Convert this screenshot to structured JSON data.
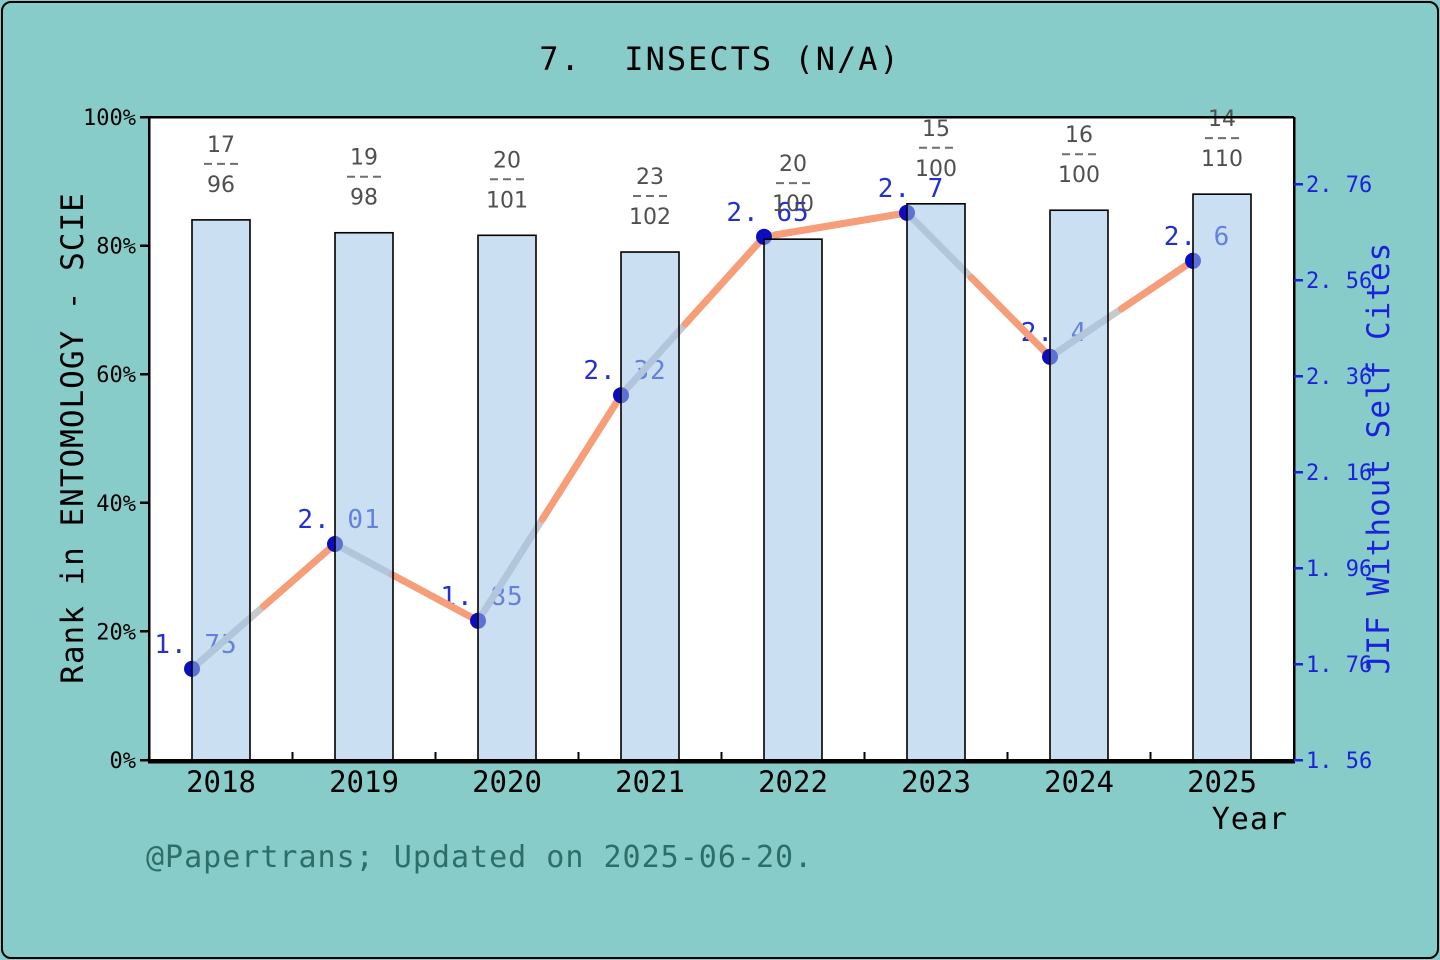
{
  "title": "7.  INSECTS (N/A)",
  "footer_credit": "@Papertrans; Updated on 2025-06-20.",
  "x_axis": {
    "label": "Year",
    "categories": [
      "2018",
      "2019",
      "2020",
      "2021",
      "2022",
      "2023",
      "2024",
      "2025"
    ]
  },
  "left_axis": {
    "label": "Rank in ENTOMOLOGY - SCIE",
    "tick_labels": [
      "0%",
      "20%",
      "40%",
      "60%",
      "80%",
      "100%"
    ],
    "tick_values": [
      0,
      20,
      40,
      60,
      80,
      100
    ]
  },
  "right_axis": {
    "label": "JIF Without Self Cites",
    "tick_values": [
      1.56,
      1.76,
      1.96,
      2.16,
      2.36,
      2.56,
      2.76
    ]
  },
  "chart_data": {
    "type": "bar+line",
    "title": "7. INSECTS (N/A)",
    "xlabel": "Year",
    "categories": [
      "2018",
      "2019",
      "2020",
      "2021",
      "2022",
      "2023",
      "2024",
      "2025"
    ],
    "series": [
      {
        "name": "Rank in ENTOMOLOGY - SCIE (percentile bars)",
        "type": "bar",
        "axis": "left",
        "values_pct": [
          84.0,
          82.0,
          81.6,
          79.0,
          81.0,
          86.5,
          85.5,
          88.0
        ],
        "rank_labels": [
          {
            "rank": 17,
            "total": 96
          },
          {
            "rank": 19,
            "total": 98
          },
          {
            "rank": 20,
            "total": 101
          },
          {
            "rank": 23,
            "total": 102
          },
          {
            "rank": 20,
            "total": 100
          },
          {
            "rank": 15,
            "total": 100
          },
          {
            "rank": 16,
            "total": 100
          },
          {
            "rank": 14,
            "total": 110
          }
        ]
      },
      {
        "name": "JIF Without Self Cites",
        "type": "line",
        "axis": "right",
        "values": [
          1.75,
          2.01,
          1.85,
          2.32,
          2.65,
          2.7,
          2.4,
          2.6
        ],
        "point_labels": [
          "1.75",
          "2.01",
          "1.85",
          "2.32",
          "2.65",
          "2.7",
          "2.4",
          "2.6"
        ]
      }
    ],
    "left_ylim": [
      0,
      100
    ],
    "right_ylim": [
      1.56,
      2.9
    ],
    "grid": false,
    "legend": "none"
  },
  "colors": {
    "background": "#87ccc9",
    "plot_bg": "#ffffff",
    "bar_fill": "#9ec5e8",
    "bar_fill_opacity": 0.55,
    "bar_stroke": "#000000",
    "line_orange": "#f79d78",
    "line_gray": "#c8c8cd",
    "marker": "#0d0dc0",
    "point_label": "#2330cf",
    "right_axis_blue": "#1b22dd",
    "fraction_gray": "#4f4f4f",
    "footer_teal": "#2e6e69",
    "axis_black": "#000000"
  }
}
